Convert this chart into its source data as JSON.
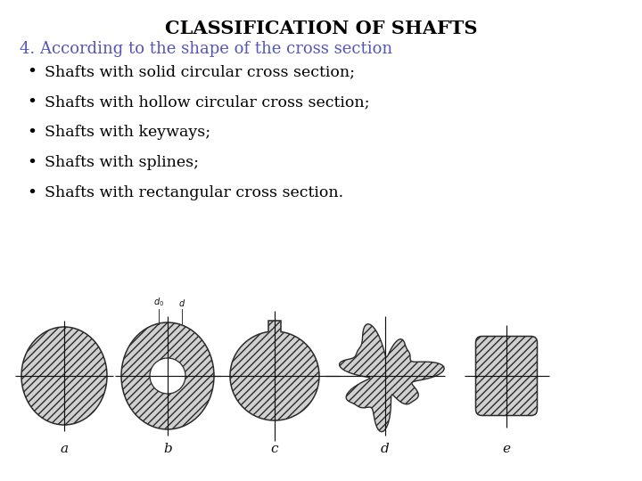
{
  "title": "CLASSIFICATION OF SHAFTS",
  "subtitle": "4. According to the shape of the cross section",
  "bullets": [
    "Shafts with solid circular cross section;",
    "Shafts with hollow circular cross section;",
    "Shafts with keyways;",
    "Shafts with splines;",
    "Shafts with rectangular cross section."
  ],
  "title_color": "#000000",
  "subtitle_color": "#5555bb",
  "bullet_color": "#000000",
  "bg_color": "#ffffff",
  "labels": [
    "a",
    "b",
    "c",
    "d",
    "e"
  ],
  "title_fontsize": 15,
  "subtitle_fontsize": 13,
  "bullet_fontsize": 12.5
}
